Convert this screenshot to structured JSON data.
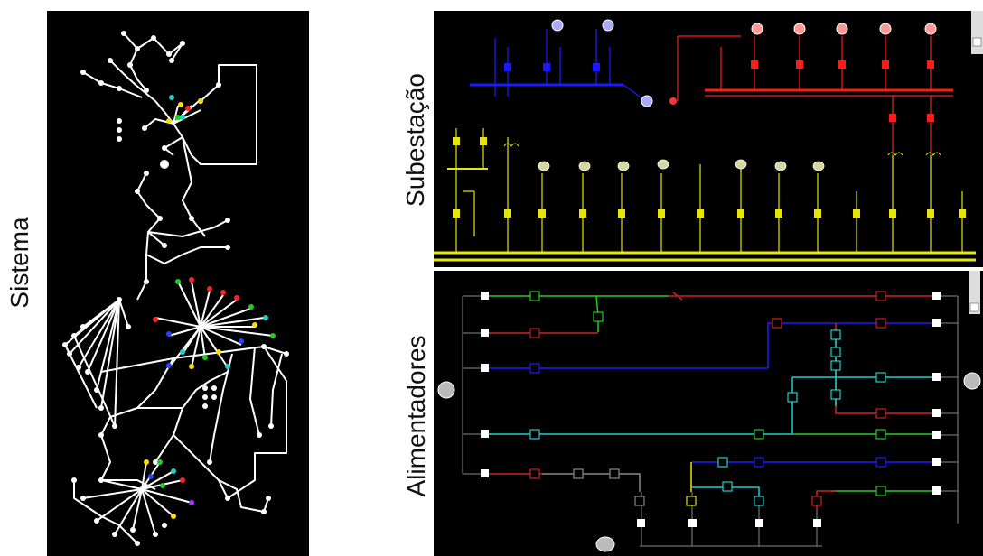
{
  "labels": {
    "sistema": "Sistema",
    "subestacao": "Subestação",
    "alimentadores": "Alimentadores"
  },
  "colors": {
    "background": "#000000",
    "network": "#ffffff",
    "blue_bus": "#1a1aff",
    "red_bus": "#ff1a1a",
    "yellow_bus": "#e6e600",
    "green_feeder": "#22cc22",
    "cyan_feeder": "#22cccc",
    "gray_feeder": "#888888"
  },
  "icons": [
    "zoom-icon",
    "slider-icon",
    "switch-icon",
    "transformer-icon",
    "generator-icon"
  ]
}
